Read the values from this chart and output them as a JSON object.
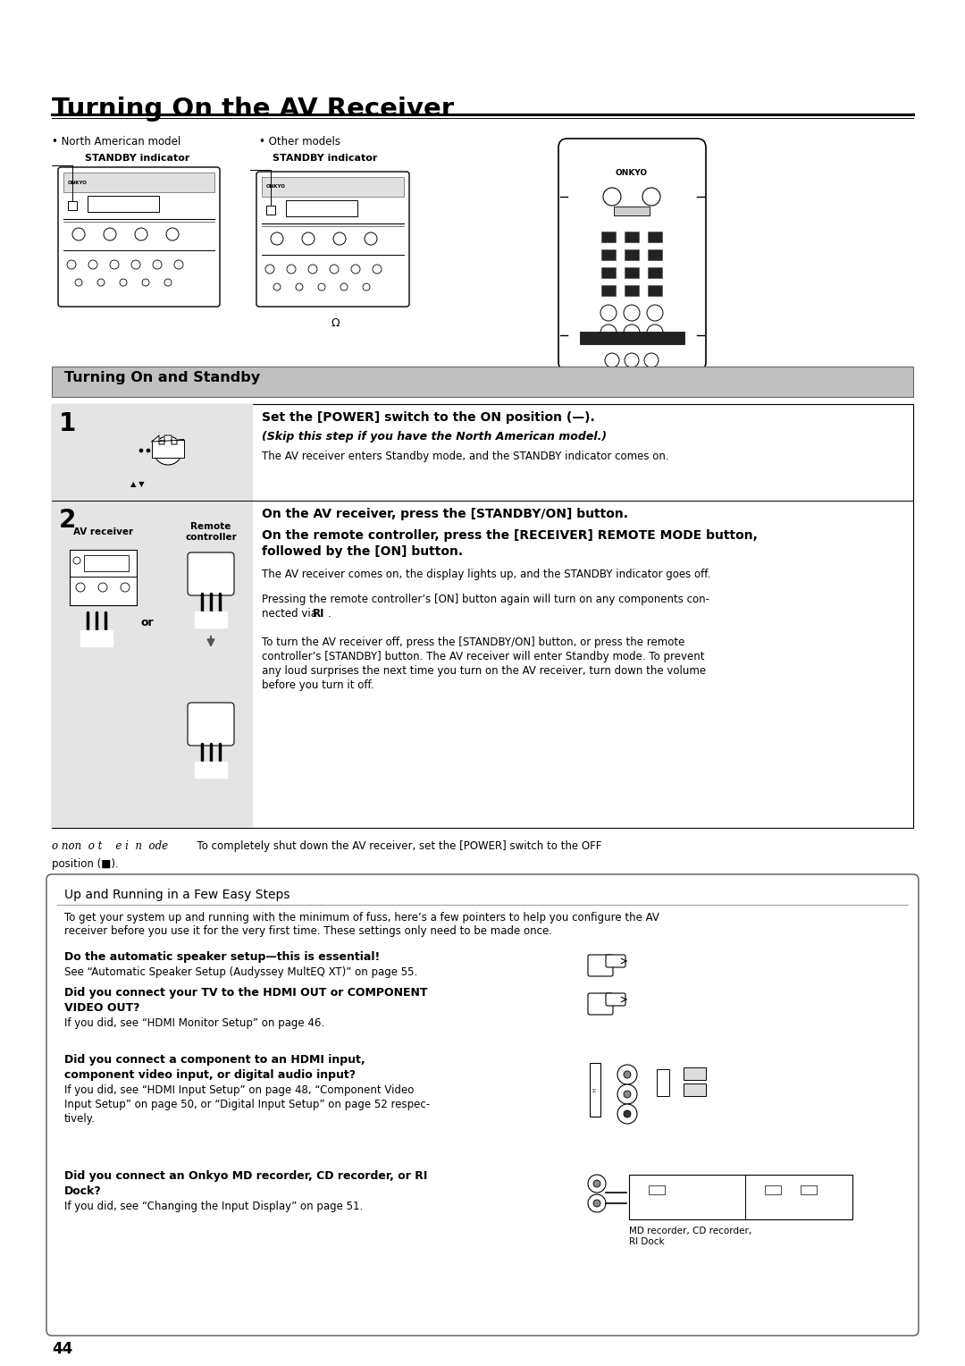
{
  "title": "Turning On the AV Receiver",
  "section1_title": "Turning On and Standby",
  "section2_title": "Up and Running in a Few Easy Steps",
  "page_number": "44",
  "bg_color": "#ffffff",
  "light_gray": "#c8c8c8",
  "label_na": "• North American model",
  "label_other": "• Other models",
  "standby_label": "STANDBY indicator",
  "step1_num": "1",
  "step2_num": "2",
  "step1_italic": "(Skip this step if you have the North American model.)",
  "step1_text": "The AV receiver enters Standby mode, and the STANDBY indicator comes on.",
  "step2_bold1": "On the AV receiver, press the [STANDBY/ON] button.",
  "step2_text1": "The AV receiver comes on, the display lights up, and the STANDBY indicator goes off.",
  "step2_text3_1": "To turn the AV receiver off, press the [STANDBY/ON] button, or press the remote",
  "step2_text3_2": "controller’s [STANDBY] button. The AV receiver will enter Standby mode. To prevent",
  "step2_text3_3": "any loud surprises the next time you turn on the AV receiver, turn down the volume",
  "step2_text3_4": "before you turn it off.",
  "av_receiver_label": "AV receiver",
  "remote_label": "Remote\ncontroller",
  "or_label": "or",
  "note_italic": "o non  o t    e i  n  ode",
  "note_rest": "  To completely shut down the AV receiver, set the [POWER] switch to the OFF",
  "note_line2": "position (■).",
  "box2_title": "Up and Running in a Few Easy Steps",
  "box2_p1_bold": "Do the automatic speaker setup—this is essential!",
  "box2_p1_text": "See “Automatic Speaker Setup (Audyssey MultEQ XT)” on page 55.",
  "box2_p2_bold1": "Did you connect your TV to the HDMI OUT or COMPONENT",
  "box2_p2_bold2": "VIDEO OUT?",
  "box2_p2_text": "If you did, see “HDMI Monitor Setup” on page 46.",
  "box2_p3_bold1": "Did you connect a component to an HDMI input,",
  "box2_p3_bold2": "component video input, or digital audio input?",
  "box2_p3_t1": "If you did, see “HDMI Input Setup” on page 48, “Component Video",
  "box2_p3_t2": "Input Setup” on page 50, or “Digital Input Setup” on page 52 respec-",
  "box2_p3_t3": "tively.",
  "box2_p4_bold1": "Did you connect an Onkyo MD recorder, CD recorder, or RI",
  "box2_p4_bold2": "Dock?",
  "box2_p4_text": "If you did, see “Changing the Input Display” on page 51.",
  "box2_caption": "MD recorder, CD recorder,\nRI Dock"
}
